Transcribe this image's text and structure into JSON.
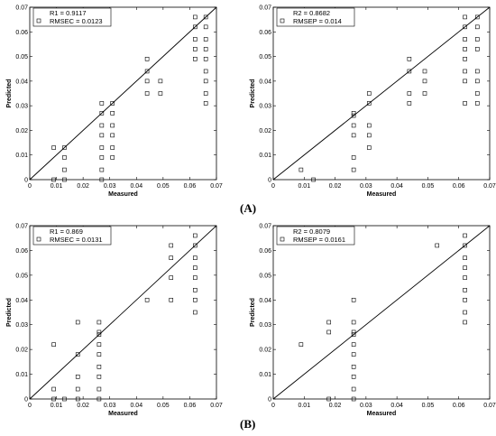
{
  "panel_labels": [
    "(A)",
    "(B)"
  ],
  "chart_data": [
    {
      "type": "scatter",
      "xlabel": "Measured",
      "ylabel": "Predicted",
      "xlim": [
        0,
        0.07
      ],
      "ylim": [
        0,
        0.07
      ],
      "xticks": [
        "0",
        "0.01",
        "0.02",
        "0.03",
        "0.04",
        "0.05",
        "0.06",
        "0.07"
      ],
      "yticks": [
        "0",
        "0.01",
        "0.02",
        "0.03",
        "0.04",
        "0.05",
        "0.06",
        "0.07"
      ],
      "legend_location": "top-left",
      "legend": [
        "R1 = 0.9117",
        "RMSEC = 0.0123"
      ],
      "series": [
        {
          "x": [
            0.009,
            0.009,
            0.013,
            0.013,
            0.013,
            0.013,
            0.027,
            0.027,
            0.027,
            0.027,
            0.027,
            0.027,
            0.027,
            0.027,
            0.031,
            0.031,
            0.031,
            0.031,
            0.031,
            0.031,
            0.044,
            0.044,
            0.044,
            0.044,
            0.049,
            0.049,
            0.062,
            0.062,
            0.062,
            0.062,
            0.062,
            0.066,
            0.066,
            0.066,
            0.066,
            0.066,
            0.066,
            0.066,
            0.066,
            0.066
          ],
          "y": [
            0.013,
            0.0,
            0.013,
            0.009,
            0.004,
            0.0,
            0.031,
            0.027,
            0.022,
            0.018,
            0.013,
            0.009,
            0.004,
            0.0,
            0.031,
            0.027,
            0.022,
            0.018,
            0.013,
            0.009,
            0.049,
            0.044,
            0.04,
            0.035,
            0.04,
            0.035,
            0.066,
            0.062,
            0.057,
            0.053,
            0.049,
            0.066,
            0.062,
            0.057,
            0.053,
            0.049,
            0.044,
            0.04,
            0.035,
            0.031
          ]
        }
      ],
      "line": [
        [
          0,
          0
        ],
        [
          0.07,
          0.07
        ]
      ]
    },
    {
      "type": "scatter",
      "xlabel": "Measured",
      "ylabel": "Predicted",
      "xlim": [
        0,
        0.07
      ],
      "ylim": [
        0,
        0.07
      ],
      "xticks": [
        "0",
        "0.01",
        "0.02",
        "0.03",
        "0.04",
        "0.05",
        "0.06",
        "0.07"
      ],
      "yticks": [
        "0",
        "0.01",
        "0.02",
        "0.03",
        "0.04",
        "0.05",
        "0.06",
        "0.07"
      ],
      "legend_location": "top-left",
      "legend": [
        "R2 = 0.8682",
        "RMSEP = 0.014"
      ],
      "series": [
        {
          "x": [
            0.009,
            0.013,
            0.026,
            0.026,
            0.026,
            0.026,
            0.026,
            0.026,
            0.031,
            0.031,
            0.031,
            0.031,
            0.031,
            0.044,
            0.044,
            0.044,
            0.044,
            0.049,
            0.049,
            0.049,
            0.062,
            0.062,
            0.062,
            0.062,
            0.062,
            0.062,
            0.062,
            0.062,
            0.066,
            0.066,
            0.066,
            0.066,
            0.066,
            0.066,
            0.066,
            0.066
          ],
          "y": [
            0.004,
            0.0,
            0.026,
            0.022,
            0.018,
            0.009,
            0.004,
            0.027,
            0.035,
            0.031,
            0.022,
            0.018,
            0.013,
            0.049,
            0.044,
            0.035,
            0.031,
            0.044,
            0.04,
            0.035,
            0.066,
            0.062,
            0.057,
            0.053,
            0.049,
            0.044,
            0.04,
            0.031,
            0.066,
            0.062,
            0.057,
            0.053,
            0.044,
            0.04,
            0.035,
            0.031
          ]
        }
      ],
      "line": [
        [
          0,
          0
        ],
        [
          0.07,
          0.07
        ]
      ]
    },
    {
      "type": "scatter",
      "xlabel": "Measured",
      "ylabel": "Predicted",
      "xlim": [
        0,
        0.07
      ],
      "ylim": [
        0,
        0.07
      ],
      "xticks": [
        "0",
        "0.01",
        "0.02",
        "0.03",
        "0.04",
        "0.05",
        "0.06",
        "0.07"
      ],
      "yticks": [
        "0",
        "0.01",
        "0.02",
        "0.03",
        "0.04",
        "0.05",
        "0.06",
        "0.07"
      ],
      "legend_location": "top-left",
      "legend": [
        "R1 = 0.869",
        "RMSEC = 0.0131"
      ],
      "series": [
        {
          "x": [
            0.009,
            0.009,
            0.009,
            0.013,
            0.018,
            0.018,
            0.018,
            0.018,
            0.018,
            0.026,
            0.026,
            0.026,
            0.026,
            0.026,
            0.026,
            0.026,
            0.026,
            0.026,
            0.044,
            0.053,
            0.053,
            0.053,
            0.053,
            0.062,
            0.062,
            0.062,
            0.062,
            0.062,
            0.062,
            0.062,
            0.062
          ],
          "y": [
            0.022,
            0.004,
            0.0,
            0.0,
            0.031,
            0.018,
            0.009,
            0.004,
            0.0,
            0.031,
            0.027,
            0.022,
            0.018,
            0.013,
            0.009,
            0.004,
            0.0,
            0.026,
            0.04,
            0.062,
            0.057,
            0.049,
            0.04,
            0.066,
            0.062,
            0.057,
            0.053,
            0.049,
            0.044,
            0.04,
            0.035
          ]
        }
      ],
      "line": [
        [
          0,
          0
        ],
        [
          0.07,
          0.07
        ]
      ]
    },
    {
      "type": "scatter",
      "xlabel": "Measured",
      "ylabel": "Predicted",
      "xlim": [
        0,
        0.07
      ],
      "ylim": [
        0,
        0.07
      ],
      "xticks": [
        "0",
        "0.01",
        "0.02",
        "0.03",
        "0.04",
        "0.05",
        "0.06",
        "0.07"
      ],
      "yticks": [
        "0",
        "0.01",
        "0.02",
        "0.03",
        "0.04",
        "0.05",
        "0.06",
        "0.07"
      ],
      "legend_location": "top-left",
      "legend": [
        "R2 = 0.8079",
        "RMSEP = 0.0161"
      ],
      "series": [
        {
          "x": [
            0.009,
            0.018,
            0.018,
            0.018,
            0.026,
            0.026,
            0.026,
            0.026,
            0.026,
            0.026,
            0.026,
            0.026,
            0.026,
            0.026,
            0.053,
            0.062,
            0.062,
            0.062,
            0.062,
            0.062,
            0.062,
            0.062,
            0.062,
            0.062
          ],
          "y": [
            0.022,
            0.031,
            0.027,
            0.0,
            0.04,
            0.031,
            0.027,
            0.022,
            0.018,
            0.013,
            0.009,
            0.004,
            0.0,
            0.026,
            0.062,
            0.066,
            0.062,
            0.057,
            0.053,
            0.049,
            0.044,
            0.04,
            0.035,
            0.031
          ]
        }
      ],
      "line": [
        [
          0,
          0
        ],
        [
          0.07,
          0.07
        ]
      ]
    }
  ]
}
